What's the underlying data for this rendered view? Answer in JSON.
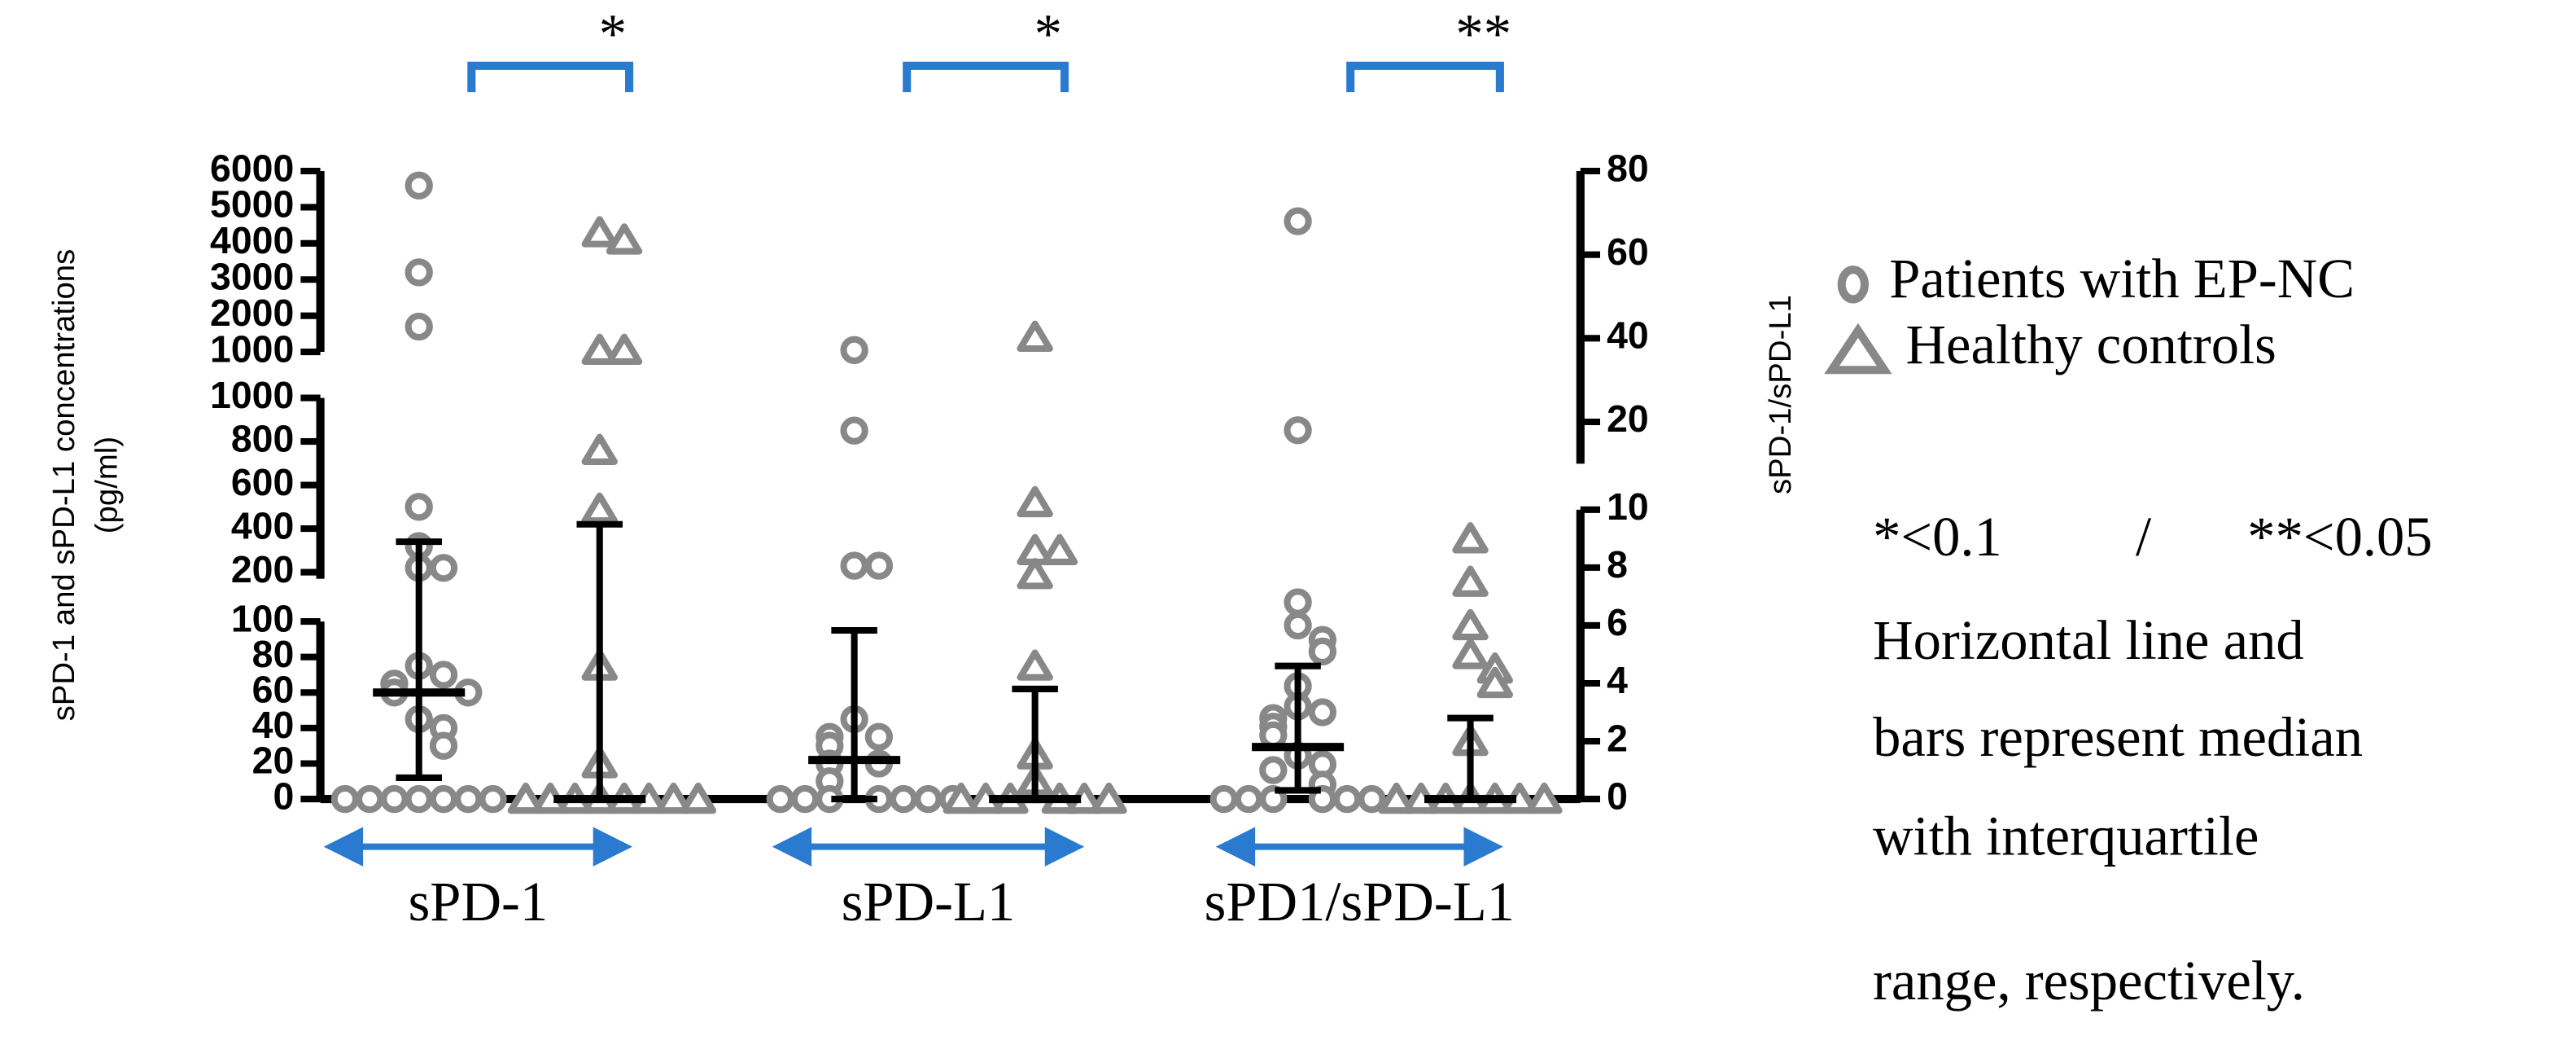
{
  "chart_data": {
    "type": "dot",
    "y_label": [
      "sPD-1 and sPD-L1 concentrations",
      "(pg/ml)"
    ],
    "y2_label": "sPD-1/sPD-L1",
    "categories": [
      "sPD-1",
      "sPD-L1",
      "sPD1/sPD-L1"
    ],
    "category_axis": [
      "y",
      "y",
      "y2"
    ],
    "y_segments": [
      {
        "ylim": [
          0,
          100
        ],
        "yticks": [
          0,
          20,
          40,
          60,
          80,
          100
        ]
      },
      {
        "ylim": [
          170,
          1000
        ],
        "yticks": [
          200,
          400,
          600,
          800,
          1000
        ]
      },
      {
        "ylim": [
          1000,
          6000
        ],
        "yticks": [
          1000,
          2000,
          3000,
          4000,
          5000,
          6000
        ]
      }
    ],
    "y2_segments": [
      {
        "ylim": [
          0,
          10
        ],
        "yticks": [
          0,
          2,
          4,
          6,
          8,
          10
        ]
      },
      {
        "ylim": [
          10,
          80
        ],
        "yticks": [
          20,
          40,
          60,
          80
        ]
      }
    ],
    "series": [
      {
        "name": "Patients with EP-NC",
        "marker": "circle",
        "color": "#888888",
        "values": [
          [
            5600,
            3200,
            1700,
            500,
            320,
            220,
            220,
            75,
            70,
            65,
            60,
            60,
            45,
            40,
            30,
            0,
            0,
            0,
            0,
            0,
            0,
            0
          ],
          [
            1050,
            850,
            230,
            230,
            45,
            35,
            35,
            30,
            20,
            20,
            10,
            0,
            0,
            0,
            0,
            0,
            0,
            0
          ],
          [
            68,
            18,
            6.8,
            6,
            5.5,
            5.1,
            3.9,
            3.2,
            3.0,
            2.8,
            2.5,
            2.2,
            1.5,
            1.2,
            1,
            0.5,
            0,
            0,
            0,
            0,
            0,
            0
          ]
        ],
        "median": [
          60,
          22,
          1.8
        ],
        "q1": [
          12,
          0,
          0.3
        ],
        "q3": [
          340,
          95,
          4.6
        ]
      },
      {
        "name": "Healthy controls",
        "marker": "triangle",
        "color": "#888888",
        "values": [
          [
            4300,
            4100,
            1050,
            1050,
            760,
            490,
            75,
            20,
            0,
            0,
            0,
            0,
            0,
            0,
            0,
            0
          ],
          [
            1410,
            520,
            300,
            300,
            190,
            75,
            25,
            10,
            0,
            0,
            0,
            0,
            0,
            0
          ],
          [
            9,
            7.5,
            6,
            5,
            4.5,
            4,
            2,
            0,
            0,
            0,
            0,
            0,
            0,
            0
          ]
        ],
        "median": [
          0,
          0,
          0
        ],
        "q1": [
          0,
          0,
          0
        ],
        "q3": [
          420,
          62,
          2.8
        ]
      }
    ],
    "significance": [
      "*",
      "*",
      "**"
    ],
    "significance_color": "#2a7bd0",
    "legend": "right",
    "annotations": {
      "thresholds": [
        "*<0.1",
        "/",
        "**<0.05"
      ],
      "note": [
        "Horizontal line and",
        "bars represent median",
        "with interquartile",
        "range, respectively."
      ]
    }
  }
}
